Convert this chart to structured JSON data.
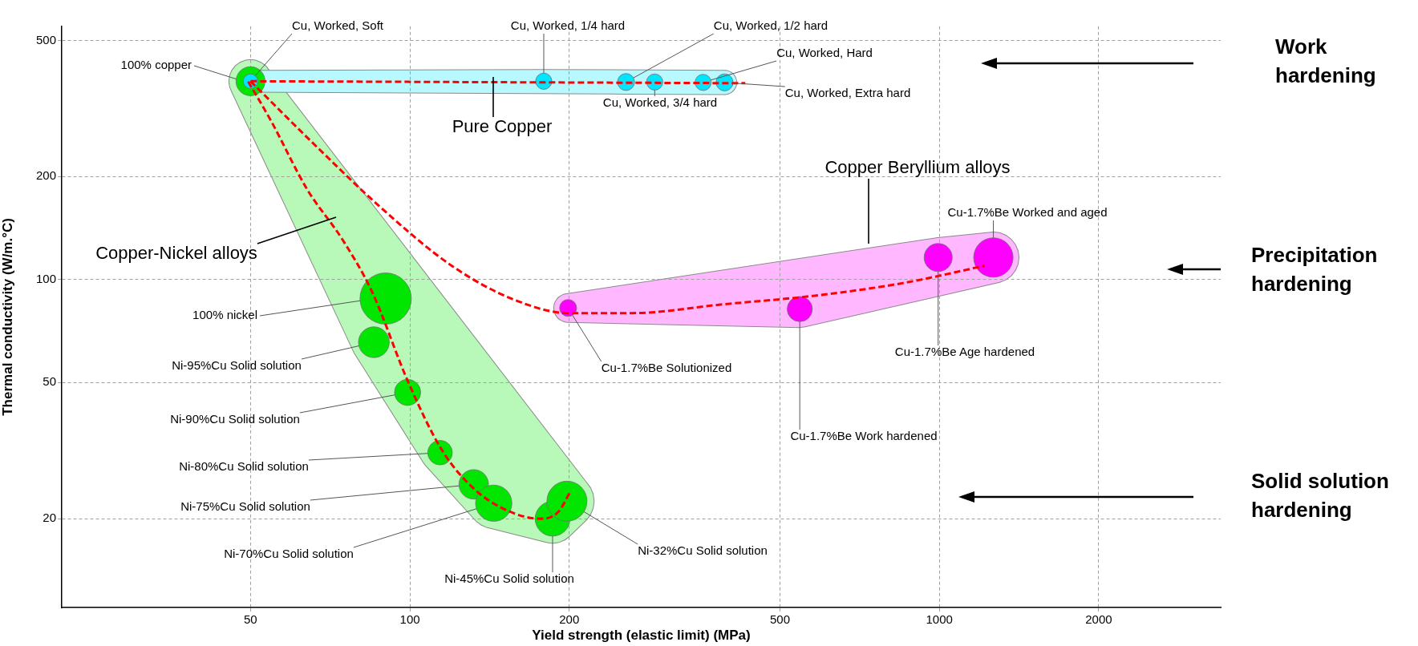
{
  "chart_data": {
    "type": "bubble",
    "xlabel": "Yield strength (elastic limit) (MPa)",
    "ylabel": "Thermal conductivity (W/m.°C)",
    "log": "xy",
    "xlim": [
      22,
      3400
    ],
    "ylim": [
      11,
      550
    ],
    "xticks": [
      50,
      100,
      200,
      500,
      1000,
      2000
    ],
    "yticks": [
      20,
      50,
      100,
      200,
      500
    ],
    "grid": true,
    "line_style": "dashed",
    "series": [
      {
        "name": "100% copper",
        "color": "#00e600",
        "x": [
          50
        ],
        "values": [
          380
        ],
        "sizes": [
          0.32
        ]
      },
      {
        "name": "Cu, Worked, Soft",
        "color": "#00e5ff",
        "x": [
          50
        ],
        "values": [
          380
        ],
        "sizes": [
          0.08
        ]
      },
      {
        "name": "Cu, Worked, 1/4 hard",
        "color": "#00e5ff",
        "x": [
          179
        ],
        "values": [
          380
        ],
        "sizes": [
          0.1
        ]
      },
      {
        "name": "Cu, Worked, 1/2 hard",
        "color": "#00e5ff",
        "x": [
          256
        ],
        "values": [
          378
        ],
        "sizes": [
          0.11
        ]
      },
      {
        "name": "Cu, Worked, 3/4 hard",
        "color": "#00e5ff",
        "x": [
          290
        ],
        "values": [
          378
        ],
        "sizes": [
          0.1
        ]
      },
      {
        "name": "Cu, Worked, Hard",
        "color": "#00e5ff",
        "x": [
          358
        ],
        "values": [
          377
        ],
        "sizes": [
          0.1
        ]
      },
      {
        "name": "Cu, Worked, Extra hard",
        "color": "#00e5ff",
        "x": [
          393
        ],
        "values": [
          377
        ],
        "sizes": [
          0.11
        ]
      },
      {
        "name": "100% nickel",
        "color": "#00e600",
        "x": [
          90
        ],
        "values": [
          88
        ],
        "sizes": [
          1
        ]
      },
      {
        "name": "Ni-95%Cu Solid solution",
        "color": "#00e600",
        "x": [
          85.5
        ],
        "values": [
          65.6
        ],
        "sizes": [
          0.36
        ]
      },
      {
        "name": "Ni-90%Cu Solid solution",
        "color": "#00e600",
        "x": [
          99
        ],
        "values": [
          46.8
        ],
        "sizes": [
          0.26
        ]
      },
      {
        "name": "Ni-80%Cu Solid solution",
        "color": "#00e600",
        "x": [
          114
        ],
        "values": [
          31.2
        ],
        "sizes": [
          0.23
        ]
      },
      {
        "name": "Ni-75%Cu Solid solution",
        "color": "#00e600",
        "x": [
          132
        ],
        "values": [
          25.2
        ],
        "sizes": [
          0.33
        ]
      },
      {
        "name": "Ni-70%Cu Solid solution",
        "color": "#00e600",
        "x": [
          144
        ],
        "values": [
          22.2
        ],
        "sizes": [
          0.5
        ]
      },
      {
        "name": "Ni-45%Cu Solid solution",
        "color": "#00e600",
        "x": [
          186
        ],
        "values": [
          20
        ],
        "sizes": [
          0.46
        ]
      },
      {
        "name": "Ni-32%Cu Solid solution",
        "color": "#00e600",
        "x": [
          198
        ],
        "values": [
          22.5
        ],
        "sizes": [
          0.61
        ]
      },
      {
        "name": "Cu-1.7%Be Solutionized",
        "color": "#ff00ff",
        "x": [
          199
        ],
        "values": [
          82.6
        ],
        "sizes": [
          0.11
        ]
      },
      {
        "name": "Cu-1.7%Be Work hardened",
        "color": "#ff00ff",
        "x": [
          545
        ],
        "values": [
          82
        ],
        "sizes": [
          0.24
        ]
      },
      {
        "name": "Cu-1.7%Be Age hardened",
        "color": "#ff00ff",
        "x": [
          995
        ],
        "values": [
          116
        ],
        "sizes": [
          0.3
        ]
      },
      {
        "name": "Cu-1.7%Be Worked and aged",
        "color": "#ff00ff",
        "x": [
          1265
        ],
        "values": [
          116
        ],
        "sizes": [
          0.59
        ]
      },
      {
        "type": "line",
        "color": "#ff0000",
        "x": [
          50,
          430
        ],
        "values": [
          380,
          375
        ]
      },
      {
        "type": "line",
        "color": "#ff0000",
        "x": [
          49.5,
          54.6,
          63.9,
          74.8,
          84.8,
          99.2,
          115,
          132,
          152,
          176,
          190.5,
          201
        ],
        "values": [
          379,
          292,
          184,
          130,
          92.2,
          50.3,
          31.7,
          24.5,
          21.2,
          20,
          20.9,
          24
        ]
      },
      {
        "type": "line",
        "color": "#ff0000",
        "x": [
          50,
          66.4,
          87.5,
          120,
          158,
          200,
          263,
          389,
          577,
          855,
          1217
        ],
        "values": [
          380,
          246,
          164,
          109.7,
          87.1,
          79.8,
          79.8,
          84.6,
          89.6,
          97.7,
          109.7
        ]
      }
    ],
    "annotations": [
      "Pure Copper",
      "Copper-Nickel alloys",
      "Copper Beryllium alloys",
      "Work hardening",
      "Precipitation hardening",
      "Solid solution hardening"
    ]
  }
}
